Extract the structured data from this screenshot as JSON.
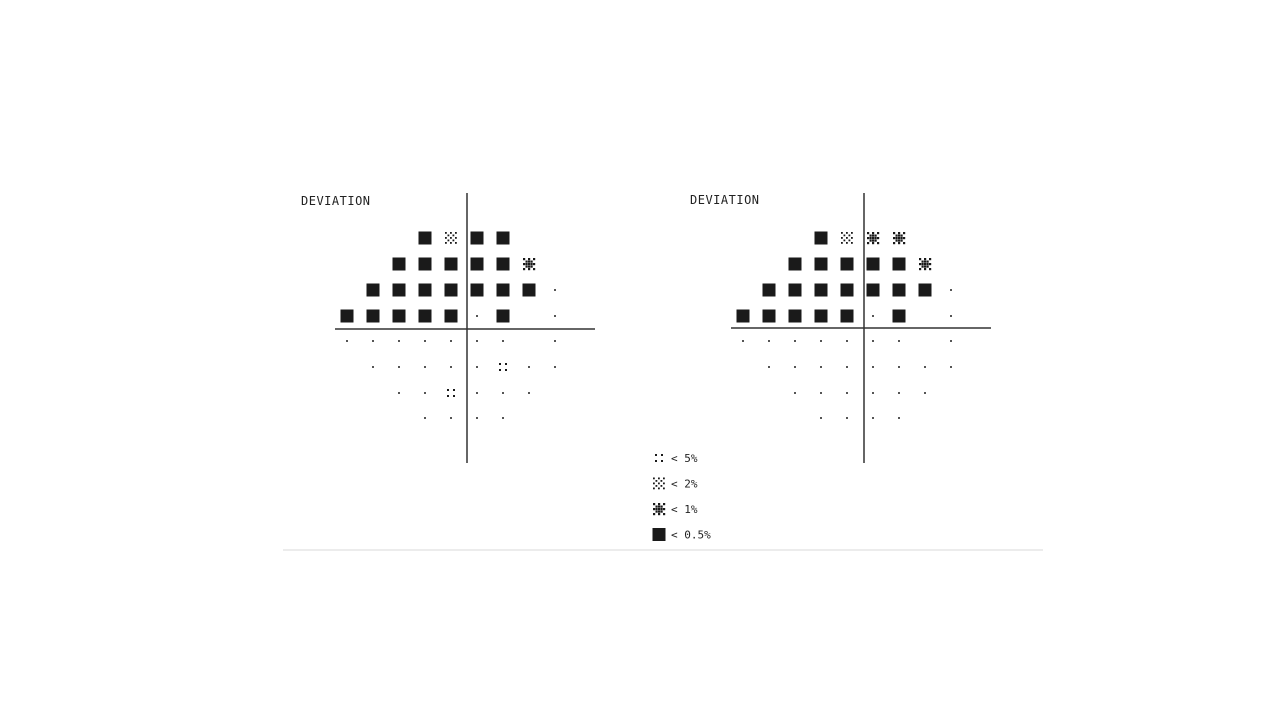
{
  "figure": {
    "plots": [
      {
        "id": "left",
        "title": "DEVIATION",
        "rows": [
          [
            "",
            "",
            "",
            "0.5",
            "2",
            "0.5",
            "0.5",
            "",
            ""
          ],
          [
            "",
            "",
            "0.5",
            "0.5",
            "0.5",
            "0.5",
            "0.5",
            "1",
            ""
          ],
          [
            "",
            "0.5",
            "0.5",
            "0.5",
            "0.5",
            "0.5",
            "0.5",
            "0.5",
            "n"
          ],
          [
            "0.5",
            "0.5",
            "0.5",
            "0.5",
            "0.5",
            "n",
            "0.5",
            "",
            "n"
          ],
          [
            "n",
            "n",
            "n",
            "n",
            "n",
            "n",
            "n",
            "",
            "n"
          ],
          [
            "",
            "n",
            "n",
            "n",
            "n",
            "n",
            "5",
            "n",
            "n"
          ],
          [
            "",
            "",
            "n",
            "n",
            "5",
            "n",
            "n",
            "n",
            ""
          ],
          [
            "",
            "",
            "",
            "n",
            "n",
            "n",
            "n",
            "",
            ""
          ]
        ]
      },
      {
        "id": "right",
        "title": "DEVIATION",
        "rows": [
          [
            "",
            "",
            "",
            "0.5",
            "2",
            "1",
            "1",
            "",
            ""
          ],
          [
            "",
            "",
            "0.5",
            "0.5",
            "0.5",
            "0.5",
            "0.5",
            "1",
            ""
          ],
          [
            "",
            "0.5",
            "0.5",
            "0.5",
            "0.5",
            "0.5",
            "0.5",
            "0.5",
            "n"
          ],
          [
            "0.5",
            "0.5",
            "0.5",
            "0.5",
            "0.5",
            "n",
            "0.5",
            "",
            "n"
          ],
          [
            "n",
            "n",
            "n",
            "n",
            "n",
            "n",
            "n",
            "",
            "n"
          ],
          [
            "",
            "n",
            "n",
            "n",
            "n",
            "n",
            "n",
            "n",
            "n"
          ],
          [
            "",
            "",
            "n",
            "n",
            "n",
            "n",
            "n",
            "n",
            ""
          ],
          [
            "",
            "",
            "",
            "n",
            "n",
            "n",
            "n",
            "",
            ""
          ]
        ]
      }
    ],
    "legend": [
      {
        "symbol": "5",
        "label": "< 5%"
      },
      {
        "symbol": "2",
        "label": "< 2%"
      },
      {
        "symbol": "1",
        "label": "< 1%"
      },
      {
        "symbol": "0.5",
        "label": "< 0.5%"
      }
    ],
    "colors": {
      "ink": "#1a1a1a",
      "axis": "#333333",
      "divider": "#d9d9d9",
      "background": "#ffffff"
    }
  }
}
